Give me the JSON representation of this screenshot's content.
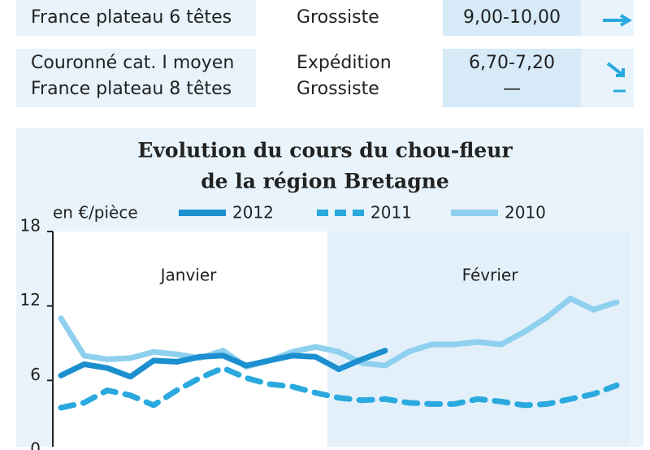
{
  "table": {
    "rows": [
      {
        "product": [
          "France plateau 6 têtes"
        ],
        "stage": [
          "Grossiste"
        ],
        "price": [
          "9,00-10,00"
        ]
      },
      {
        "product": [
          "Couronné cat. I moyen",
          "France plateau 8 têtes"
        ],
        "stage": [
          "Expédition",
          "Grossiste"
        ],
        "price": [
          "6,70-7,20",
          "—"
        ]
      }
    ]
  },
  "chart_data": {
    "type": "line",
    "title": [
      "Evolution du cours du chou-fleur",
      "de la région Bretagne"
    ],
    "y_label": "en €/pièce",
    "months": [
      "Janvier",
      "Février"
    ],
    "ylim": [
      0,
      18
    ],
    "yticks": [
      0,
      6,
      12,
      18
    ],
    "series": [
      {
        "name": "2012",
        "color": "#1b8fcf",
        "dash": false,
        "values": [
          6.4,
          7.3,
          7.0,
          6.3,
          7.6,
          7.5,
          7.9,
          8.0,
          7.2,
          7.6,
          8.0,
          7.9,
          6.9,
          7.7,
          8.4,
          null,
          null,
          null,
          null,
          null,
          null,
          null,
          null,
          null,
          null
        ]
      },
      {
        "name": "2011",
        "color": "#2aa9de",
        "dash": true,
        "values": [
          3.8,
          4.2,
          5.2,
          4.8,
          4.0,
          5.2,
          6.2,
          7.0,
          6.2,
          5.7,
          5.5,
          5.0,
          4.6,
          4.4,
          4.5,
          4.2,
          4.1,
          4.1,
          4.5,
          4.3,
          4.0,
          4.1,
          4.5,
          4.9,
          5.6
        ]
      },
      {
        "name": "2010",
        "color": "#8fd0ef",
        "dash": false,
        "values": [
          11.0,
          8.0,
          7.7,
          7.8,
          8.3,
          8.1,
          7.8,
          8.4,
          7.1,
          7.6,
          8.3,
          8.7,
          8.3,
          7.4,
          7.2,
          8.3,
          8.9,
          8.9,
          9.1,
          8.9,
          9.9,
          11.1,
          12.6,
          11.7,
          12.3
        ]
      }
    ]
  }
}
